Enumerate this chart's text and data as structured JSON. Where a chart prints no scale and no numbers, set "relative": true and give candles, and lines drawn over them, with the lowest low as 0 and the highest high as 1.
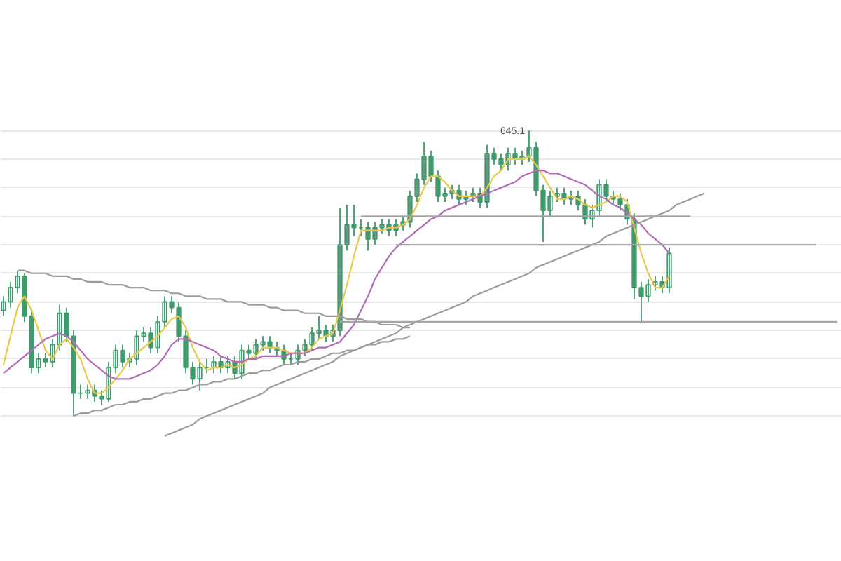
{
  "chart_data": {
    "type": "candlestick",
    "relative": true,
    "tick_labels": false,
    "grid": "y",
    "color": "#3f9b6c",
    "categories": [
      null,
      null,
      null,
      null,
      null,
      null,
      null,
      null,
      null,
      null,
      null,
      null,
      null,
      null,
      null,
      null,
      null,
      null,
      null,
      null,
      null,
      null,
      null,
      null,
      null,
      null,
      null,
      null,
      null,
      null,
      null,
      null,
      null,
      null,
      null,
      null,
      null,
      null,
      null,
      null,
      null,
      null,
      null,
      null,
      null,
      null,
      null,
      null,
      null,
      null,
      null,
      null,
      null,
      null,
      null,
      null,
      null,
      null,
      null,
      null,
      null,
      null,
      null,
      null,
      null,
      null,
      null,
      null,
      null,
      null,
      null,
      null,
      null,
      null,
      null,
      null,
      null,
      null,
      null,
      null,
      null,
      null,
      null,
      null,
      null,
      null,
      null,
      null,
      null,
      null,
      null,
      null,
      null,
      null,
      null,
      null,
      null,
      null,
      null,
      null,
      null,
      null,
      null,
      null,
      null,
      null,
      null,
      null,
      null,
      null,
      null,
      null,
      null,
      null,
      null,
      null,
      null,
      null,
      null,
      null
    ],
    "ohlc": [
      [
        0.37,
        0.42,
        0.35,
        0.4
      ],
      [
        0.4,
        0.47,
        0.38,
        0.45
      ],
      [
        0.45,
        0.51,
        0.43,
        0.49
      ],
      [
        0.49,
        0.5,
        0.33,
        0.35
      ],
      [
        0.35,
        0.37,
        0.15,
        0.17
      ],
      [
        0.17,
        0.22,
        0.15,
        0.2
      ],
      [
        0.2,
        0.22,
        0.17,
        0.19
      ],
      [
        0.19,
        0.27,
        0.17,
        0.25
      ],
      [
        0.25,
        0.39,
        0.23,
        0.36
      ],
      [
        0.36,
        0.38,
        0.26,
        0.28
      ],
      [
        0.28,
        0.3,
        0.0,
        0.08
      ],
      [
        0.08,
        0.11,
        0.06,
        0.08
      ],
      [
        0.08,
        0.11,
        0.06,
        0.09
      ],
      [
        0.09,
        0.11,
        0.05,
        0.07
      ],
      [
        0.07,
        0.09,
        0.04,
        0.06
      ],
      [
        0.06,
        0.19,
        0.05,
        0.17
      ],
      [
        0.17,
        0.25,
        0.15,
        0.23
      ],
      [
        0.23,
        0.25,
        0.17,
        0.19
      ],
      [
        0.19,
        0.22,
        0.17,
        0.2
      ],
      [
        0.2,
        0.3,
        0.18,
        0.28
      ],
      [
        0.28,
        0.31,
        0.26,
        0.29
      ],
      [
        0.29,
        0.31,
        0.22,
        0.24
      ],
      [
        0.24,
        0.35,
        0.22,
        0.33
      ],
      [
        0.33,
        0.42,
        0.31,
        0.4
      ],
      [
        0.4,
        0.42,
        0.36,
        0.38
      ],
      [
        0.38,
        0.4,
        0.26,
        0.28
      ],
      [
        0.28,
        0.3,
        0.15,
        0.17
      ],
      [
        0.17,
        0.19,
        0.11,
        0.13
      ],
      [
        0.13,
        0.19,
        0.09,
        0.17
      ],
      [
        0.17,
        0.2,
        0.15,
        0.17
      ],
      [
        0.17,
        0.21,
        0.15,
        0.19
      ],
      [
        0.19,
        0.21,
        0.15,
        0.17
      ],
      [
        0.17,
        0.21,
        0.15,
        0.19
      ],
      [
        0.19,
        0.21,
        0.13,
        0.15
      ],
      [
        0.15,
        0.25,
        0.13,
        0.23
      ],
      [
        0.23,
        0.25,
        0.2,
        0.22
      ],
      [
        0.22,
        0.27,
        0.2,
        0.25
      ],
      [
        0.25,
        0.28,
        0.23,
        0.26
      ],
      [
        0.26,
        0.28,
        0.22,
        0.24
      ],
      [
        0.24,
        0.26,
        0.21,
        0.23
      ],
      [
        0.23,
        0.25,
        0.18,
        0.2
      ],
      [
        0.2,
        0.22,
        0.18,
        0.2
      ],
      [
        0.2,
        0.25,
        0.18,
        0.23
      ],
      [
        0.23,
        0.27,
        0.21,
        0.25
      ],
      [
        0.25,
        0.31,
        0.23,
        0.29
      ],
      [
        0.29,
        0.35,
        0.27,
        0.3
      ],
      [
        0.3,
        0.32,
        0.26,
        0.28
      ],
      [
        0.28,
        0.32,
        0.26,
        0.3
      ],
      [
        0.3,
        0.73,
        0.28,
        0.6
      ],
      [
        0.6,
        0.74,
        0.58,
        0.67
      ],
      [
        0.67,
        0.74,
        0.63,
        0.66
      ],
      [
        0.66,
        0.69,
        0.63,
        0.66
      ],
      [
        0.66,
        0.68,
        0.58,
        0.62
      ],
      [
        0.62,
        0.68,
        0.6,
        0.66
      ],
      [
        0.66,
        0.69,
        0.64,
        0.67
      ],
      [
        0.67,
        0.69,
        0.63,
        0.65
      ],
      [
        0.65,
        0.69,
        0.63,
        0.67
      ],
      [
        0.67,
        0.7,
        0.65,
        0.68
      ],
      [
        0.68,
        0.79,
        0.66,
        0.77
      ],
      [
        0.77,
        0.85,
        0.75,
        0.83
      ],
      [
        0.83,
        0.96,
        0.81,
        0.91
      ],
      [
        0.91,
        0.93,
        0.82,
        0.84
      ],
      [
        0.84,
        0.86,
        0.75,
        0.77
      ],
      [
        0.77,
        0.8,
        0.75,
        0.78
      ],
      [
        0.78,
        0.81,
        0.76,
        0.79
      ],
      [
        0.79,
        0.81,
        0.74,
        0.76
      ],
      [
        0.76,
        0.79,
        0.74,
        0.77
      ],
      [
        0.77,
        0.8,
        0.75,
        0.78
      ],
      [
        0.78,
        0.8,
        0.73,
        0.75
      ],
      [
        0.75,
        0.95,
        0.73,
        0.92
      ],
      [
        0.92,
        0.94,
        0.88,
        0.9
      ],
      [
        0.9,
        0.92,
        0.86,
        0.88
      ],
      [
        0.88,
        0.94,
        0.86,
        0.92
      ],
      [
        0.92,
        0.94,
        0.88,
        0.9
      ],
      [
        0.9,
        0.93,
        0.88,
        0.91
      ],
      [
        0.91,
        1.0,
        0.89,
        0.94
      ],
      [
        0.94,
        0.96,
        0.77,
        0.79
      ],
      [
        0.79,
        0.81,
        0.61,
        0.72
      ],
      [
        0.72,
        0.79,
        0.7,
        0.77
      ],
      [
        0.77,
        0.8,
        0.75,
        0.78
      ],
      [
        0.78,
        0.8,
        0.74,
        0.76
      ],
      [
        0.76,
        0.79,
        0.74,
        0.77
      ],
      [
        0.77,
        0.79,
        0.72,
        0.74
      ],
      [
        0.74,
        0.76,
        0.67,
        0.69
      ],
      [
        0.69,
        0.74,
        0.66,
        0.72
      ],
      [
        0.72,
        0.83,
        0.7,
        0.81
      ],
      [
        0.81,
        0.83,
        0.75,
        0.77
      ],
      [
        0.77,
        0.79,
        0.74,
        0.76
      ],
      [
        0.76,
        0.78,
        0.72,
        0.74
      ],
      [
        0.74,
        0.76,
        0.67,
        0.69
      ],
      [
        0.69,
        0.71,
        0.41,
        0.45
      ],
      [
        0.45,
        0.47,
        0.33,
        0.42
      ],
      [
        0.42,
        0.48,
        0.4,
        0.46
      ],
      [
        0.46,
        0.49,
        0.44,
        0.47
      ],
      [
        0.47,
        0.49,
        0.43,
        0.45
      ],
      [
        0.45,
        0.59,
        0.43,
        0.57
      ],
      null,
      null,
      null,
      null,
      null,
      null,
      null,
      null,
      null,
      null,
      null,
      null,
      null,
      null,
      null,
      null,
      null,
      null,
      null,
      null,
      null,
      null,
      null,
      null
    ],
    "series": [
      {
        "type": "line",
        "color": "#e9c84a",
        "values": [
          0.18,
          0.28,
          0.38,
          0.42,
          0.37,
          0.3,
          0.23,
          0.2,
          0.25,
          0.27,
          0.24,
          0.2,
          0.13,
          0.08,
          0.08,
          0.1,
          0.13,
          0.16,
          0.2,
          0.22,
          0.24,
          0.26,
          0.28,
          0.31,
          0.34,
          0.35,
          0.31,
          0.24,
          0.19,
          0.16,
          0.17,
          0.17,
          0.18,
          0.17,
          0.18,
          0.2,
          0.21,
          0.24,
          0.24,
          0.24,
          0.23,
          0.22,
          0.22,
          0.22,
          0.24,
          0.27,
          0.28,
          0.29,
          0.37,
          0.46,
          0.56,
          0.65,
          0.65,
          0.65,
          0.65,
          0.66,
          0.66,
          0.67,
          0.69,
          0.74,
          0.8,
          0.84,
          0.84,
          0.82,
          0.79,
          0.77,
          0.77,
          0.77,
          0.77,
          0.8,
          0.84,
          0.86,
          0.9,
          0.9,
          0.9,
          0.91,
          0.88,
          0.84,
          0.8,
          0.76,
          0.76,
          0.77,
          0.76,
          0.74,
          0.73,
          0.74,
          0.75,
          0.77,
          0.77,
          0.75,
          0.66,
          0.57,
          0.5,
          0.45,
          0.45,
          0.49,
          null,
          null,
          null,
          null,
          null,
          null,
          null,
          null,
          null,
          null,
          null,
          null,
          null,
          null,
          null,
          null,
          null,
          null,
          null,
          null,
          null,
          null,
          null,
          null
        ]
      },
      {
        "type": "line",
        "color": "#b469b9",
        "values": [
          0.15,
          0.17,
          0.19,
          0.21,
          0.23,
          0.25,
          0.27,
          0.28,
          0.29,
          0.28,
          0.26,
          0.23,
          0.2,
          0.18,
          0.16,
          0.14,
          0.13,
          0.13,
          0.13,
          0.14,
          0.15,
          0.16,
          0.18,
          0.21,
          0.25,
          0.27,
          0.27,
          0.26,
          0.25,
          0.24,
          0.23,
          0.21,
          0.2,
          0.19,
          0.19,
          0.2,
          0.2,
          0.21,
          0.21,
          0.21,
          0.21,
          0.22,
          0.22,
          0.22,
          0.23,
          0.24,
          0.24,
          0.25,
          0.26,
          0.29,
          0.32,
          0.37,
          0.42,
          0.48,
          0.52,
          0.56,
          0.59,
          0.61,
          0.63,
          0.65,
          0.67,
          0.69,
          0.7,
          0.72,
          0.73,
          0.74,
          0.75,
          0.76,
          0.77,
          0.78,
          0.79,
          0.8,
          0.81,
          0.82,
          0.84,
          0.85,
          0.86,
          0.86,
          0.85,
          0.85,
          0.84,
          0.83,
          0.82,
          0.81,
          0.79,
          0.77,
          0.76,
          0.74,
          0.73,
          0.71,
          0.69,
          0.67,
          0.64,
          0.62,
          0.6,
          0.57,
          null,
          null,
          null,
          null,
          null,
          null,
          null,
          null,
          null,
          null,
          null,
          null,
          null,
          null,
          null,
          null,
          null,
          null,
          null,
          null,
          null,
          null,
          null,
          null
        ]
      },
      {
        "type": "line",
        "color": "#9c9c9c",
        "values": [
          null,
          null,
          0.51,
          0.51,
          0.5,
          0.5,
          0.5,
          0.49,
          0.49,
          0.49,
          0.48,
          0.48,
          0.47,
          0.47,
          0.47,
          0.46,
          0.46,
          0.46,
          0.45,
          0.45,
          0.45,
          0.44,
          0.44,
          0.44,
          0.43,
          0.43,
          0.42,
          0.42,
          0.42,
          0.41,
          0.41,
          0.41,
          0.4,
          0.4,
          0.4,
          0.39,
          0.39,
          0.39,
          0.38,
          0.38,
          0.37,
          0.37,
          0.37,
          0.36,
          0.36,
          0.36,
          0.35,
          0.35,
          0.35,
          0.34,
          0.34,
          0.34,
          0.33,
          0.33,
          0.32,
          0.32,
          0.32,
          0.31,
          0.31,
          null,
          null,
          null,
          null,
          null,
          null,
          null,
          null,
          null,
          null,
          null,
          null,
          null,
          null,
          null,
          null,
          null,
          null,
          null,
          null,
          null,
          null,
          null,
          null,
          null,
          null,
          null,
          null,
          null,
          null,
          null,
          null,
          null,
          null,
          null,
          null,
          null,
          null,
          null,
          null,
          null,
          null,
          null,
          null,
          null,
          null,
          null,
          null,
          null,
          null,
          null,
          null,
          null,
          null,
          null,
          null,
          null,
          null,
          null,
          null,
          null
        ]
      },
      {
        "type": "line",
        "color": "#9c9c9c",
        "values": [
          null,
          null,
          null,
          null,
          null,
          null,
          null,
          null,
          null,
          null,
          0.0,
          0.01,
          0.01,
          0.02,
          0.02,
          0.03,
          0.04,
          0.04,
          0.05,
          0.05,
          0.06,
          0.06,
          0.07,
          0.08,
          0.08,
          0.09,
          0.09,
          0.1,
          0.11,
          0.11,
          0.12,
          0.12,
          0.13,
          0.13,
          0.14,
          0.15,
          0.15,
          0.16,
          0.16,
          0.17,
          0.18,
          0.18,
          0.19,
          0.19,
          0.2,
          0.2,
          0.21,
          0.22,
          0.22,
          0.23,
          0.23,
          0.24,
          0.25,
          0.25,
          0.26,
          0.26,
          0.27,
          0.27,
          0.28,
          null,
          null,
          null,
          null,
          null,
          null,
          null,
          null,
          null,
          null,
          null,
          null,
          null,
          null,
          null,
          null,
          null,
          null,
          null,
          null,
          null,
          null,
          null,
          null,
          null,
          null,
          null,
          null,
          null,
          null,
          null,
          null,
          null,
          null,
          null,
          null,
          null,
          null,
          null,
          null,
          null,
          null,
          null,
          null,
          null,
          null,
          null,
          null,
          null,
          null,
          null,
          null,
          null,
          null,
          null,
          null,
          null,
          null,
          null,
          null,
          null
        ]
      },
      {
        "type": "line",
        "color": "#9c9c9c",
        "values": [
          null,
          null,
          null,
          null,
          null,
          null,
          null,
          null,
          null,
          null,
          null,
          null,
          null,
          null,
          null,
          null,
          null,
          null,
          null,
          null,
          null,
          null,
          null,
          -0.07,
          -0.06,
          -0.05,
          -0.04,
          -0.03,
          -0.01,
          0.0,
          0.01,
          0.02,
          0.03,
          0.04,
          0.05,
          0.06,
          0.07,
          0.08,
          0.1,
          0.11,
          0.12,
          0.13,
          0.14,
          0.15,
          0.16,
          0.17,
          0.18,
          0.19,
          0.21,
          0.22,
          0.23,
          0.24,
          0.25,
          0.26,
          0.27,
          0.28,
          0.29,
          0.31,
          0.32,
          0.33,
          0.34,
          0.35,
          0.36,
          0.37,
          0.38,
          0.39,
          0.4,
          0.42,
          0.43,
          0.44,
          0.45,
          0.46,
          0.47,
          0.48,
          0.49,
          0.5,
          0.52,
          0.53,
          0.54,
          0.55,
          0.56,
          0.57,
          0.58,
          0.59,
          0.6,
          0.61,
          0.63,
          0.64,
          0.65,
          0.66,
          0.67,
          0.68,
          0.69,
          0.7,
          0.71,
          0.72,
          0.74,
          0.75,
          0.76,
          0.77,
          0.78,
          null,
          null,
          null,
          null,
          null,
          null,
          null,
          null,
          null,
          null,
          null,
          null,
          null,
          null,
          null,
          null,
          null,
          null,
          null
        ]
      },
      {
        "type": "line",
        "color": "#a6a6a6",
        "values": [
          null,
          null,
          null,
          null,
          null,
          null,
          null,
          null,
          null,
          null,
          null,
          null,
          null,
          null,
          null,
          null,
          null,
          null,
          null,
          null,
          null,
          null,
          null,
          null,
          null,
          null,
          null,
          null,
          null,
          null,
          null,
          null,
          null,
          null,
          null,
          null,
          null,
          null,
          null,
          null,
          null,
          null,
          null,
          null,
          null,
          null,
          null,
          null,
          null,
          null,
          null,
          0.7,
          0.7,
          0.7,
          0.7,
          0.7,
          0.7,
          0.7,
          0.7,
          0.7,
          0.7,
          0.7,
          0.7,
          0.7,
          0.7,
          0.7,
          0.7,
          0.7,
          0.7,
          0.7,
          0.7,
          0.7,
          0.7,
          0.7,
          0.7,
          0.7,
          0.7,
          0.7,
          0.7,
          0.7,
          0.7,
          0.7,
          0.7,
          0.7,
          0.7,
          0.7,
          0.7,
          0.7,
          0.7,
          0.7,
          0.7,
          0.7,
          0.7,
          0.7,
          0.7,
          0.7,
          0.7,
          0.7,
          0.7,
          null,
          null,
          null,
          null,
          null,
          null,
          null,
          null,
          null,
          null,
          null,
          null,
          null,
          null,
          null,
          null,
          null,
          null,
          null,
          null,
          null
        ]
      },
      {
        "type": "line",
        "color": "#a6a6a6",
        "values": [
          null,
          null,
          null,
          null,
          null,
          null,
          null,
          null,
          null,
          null,
          null,
          null,
          null,
          null,
          null,
          null,
          null,
          null,
          null,
          null,
          null,
          null,
          null,
          null,
          null,
          null,
          null,
          null,
          null,
          null,
          null,
          null,
          null,
          null,
          null,
          null,
          null,
          null,
          null,
          null,
          null,
          null,
          null,
          null,
          null,
          null,
          null,
          null,
          null,
          null,
          null,
          null,
          null,
          null,
          null,
          null,
          0.6,
          0.6,
          0.6,
          0.6,
          0.6,
          0.6,
          0.6,
          0.6,
          0.6,
          0.6,
          0.6,
          0.6,
          0.6,
          0.6,
          0.6,
          0.6,
          0.6,
          0.6,
          0.6,
          0.6,
          0.6,
          0.6,
          0.6,
          0.6,
          0.6,
          0.6,
          0.6,
          0.6,
          0.6,
          0.6,
          0.6,
          0.6,
          0.6,
          0.6,
          0.6,
          0.6,
          0.6,
          0.6,
          0.6,
          0.6,
          0.6,
          0.6,
          0.6,
          0.6,
          0.6,
          0.6,
          0.6,
          0.6,
          0.6,
          0.6,
          0.6,
          0.6,
          0.6,
          0.6,
          0.6,
          0.6,
          0.6,
          0.6,
          0.6,
          0.6,
          0.6,
          null,
          null,
          null
        ]
      },
      {
        "type": "line",
        "color": "#a6a6a6",
        "values": [
          null,
          null,
          null,
          null,
          null,
          null,
          null,
          null,
          null,
          null,
          null,
          null,
          null,
          null,
          null,
          null,
          null,
          null,
          null,
          null,
          null,
          null,
          null,
          null,
          null,
          null,
          null,
          null,
          null,
          null,
          null,
          null,
          null,
          null,
          null,
          null,
          null,
          null,
          null,
          null,
          null,
          null,
          null,
          null,
          null,
          null,
          null,
          null,
          0.33,
          0.33,
          0.33,
          0.33,
          0.33,
          0.33,
          0.33,
          0.33,
          0.33,
          0.33,
          0.33,
          0.33,
          0.33,
          0.33,
          0.33,
          0.33,
          0.33,
          0.33,
          0.33,
          0.33,
          0.33,
          0.33,
          0.33,
          0.33,
          0.33,
          0.33,
          0.33,
          0.33,
          0.33,
          0.33,
          0.33,
          0.33,
          0.33,
          0.33,
          0.33,
          0.33,
          0.33,
          0.33,
          0.33,
          0.33,
          0.33,
          0.33,
          0.33,
          0.33,
          0.33,
          0.33,
          0.33,
          0.33,
          0.33,
          0.33,
          0.33,
          0.33,
          0.33,
          0.33,
          0.33,
          0.33,
          0.33,
          0.33,
          0.33,
          0.33,
          0.33,
          0.33,
          0.33,
          0.33,
          0.33,
          0.33,
          0.33,
          0.33,
          0.33,
          0.33,
          0.33,
          0.33
        ]
      }
    ],
    "annotations": [
      "645.1"
    ]
  }
}
